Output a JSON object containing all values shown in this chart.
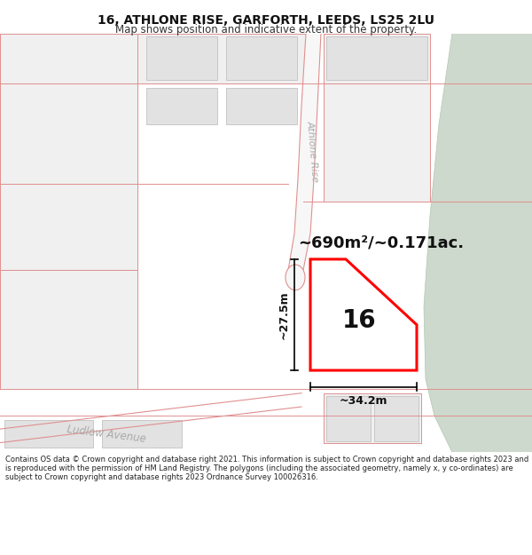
{
  "title": "16, ATHLONE RISE, GARFORTH, LEEDS, LS25 2LU",
  "subtitle": "Map shows position and indicative extent of the property.",
  "footer": "Contains OS data © Crown copyright and database right 2021. This information is subject to Crown copyright and database rights 2023 and is reproduced with the permission of HM Land Registry. The polygons (including the associated geometry, namely x, y co-ordinates) are subject to Crown copyright and database rights 2023 Ordnance Survey 100026316.",
  "bg_color": "#f7f7f7",
  "green_color": "#cdd9cc",
  "road_line_color": "#e09090",
  "building_fill": "#e2e2e2",
  "building_edge": "#c8c8c8",
  "plot_fill": "#ffffff",
  "plot_edge": "#ff0000",
  "plot_lw": 2.2,
  "dim_color": "#111111",
  "label_color": "#aaaaaa",
  "area_text": "~690m²/~0.171ac.",
  "width_text": "~34.2m",
  "height_text": "~27.5m",
  "number_text": "16",
  "street_text": "Athlone Rise",
  "road_text": "Ludlow Avenue"
}
